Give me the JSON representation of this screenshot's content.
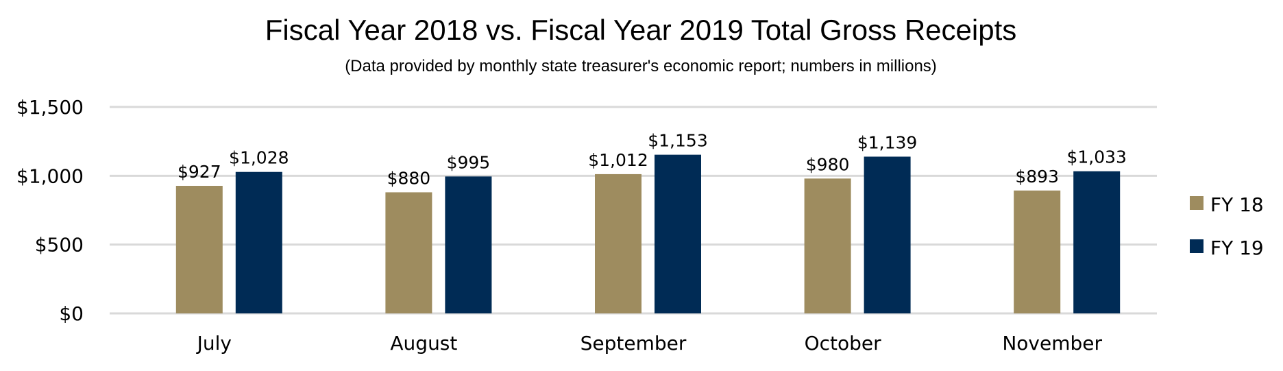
{
  "chart_data": {
    "type": "bar",
    "title": "Fiscal Year 2018 vs. Fiscal Year 2019 Total Gross Receipts",
    "subtitle": "(Data provided by monthly state treasurer's economic report; numbers in millions)",
    "xlabel": "",
    "ylabel": "",
    "categories": [
      "July",
      "August",
      "September",
      "October",
      "November"
    ],
    "series": [
      {
        "name": "FY 18",
        "color": "#9e8c5f",
        "values": [
          927,
          880,
          1012,
          980,
          893
        ],
        "labels": [
          "$927",
          "$880",
          "$1,012",
          "$980",
          "$893"
        ]
      },
      {
        "name": "FY 19",
        "color": "#002b55",
        "values": [
          1028,
          995,
          1153,
          1139,
          1033
        ],
        "labels": [
          "$1,028",
          "$995",
          "$1,153",
          "$1,139",
          "$1,033"
        ]
      }
    ],
    "ylim": [
      0,
      1500
    ],
    "yticks": [
      0,
      500,
      1000,
      1500
    ],
    "ytick_labels": [
      "$0",
      "$500",
      "$1,000",
      "$1,500"
    ],
    "grid": true,
    "gridline_color": "#d9d9d9",
    "legend_position": "right"
  }
}
